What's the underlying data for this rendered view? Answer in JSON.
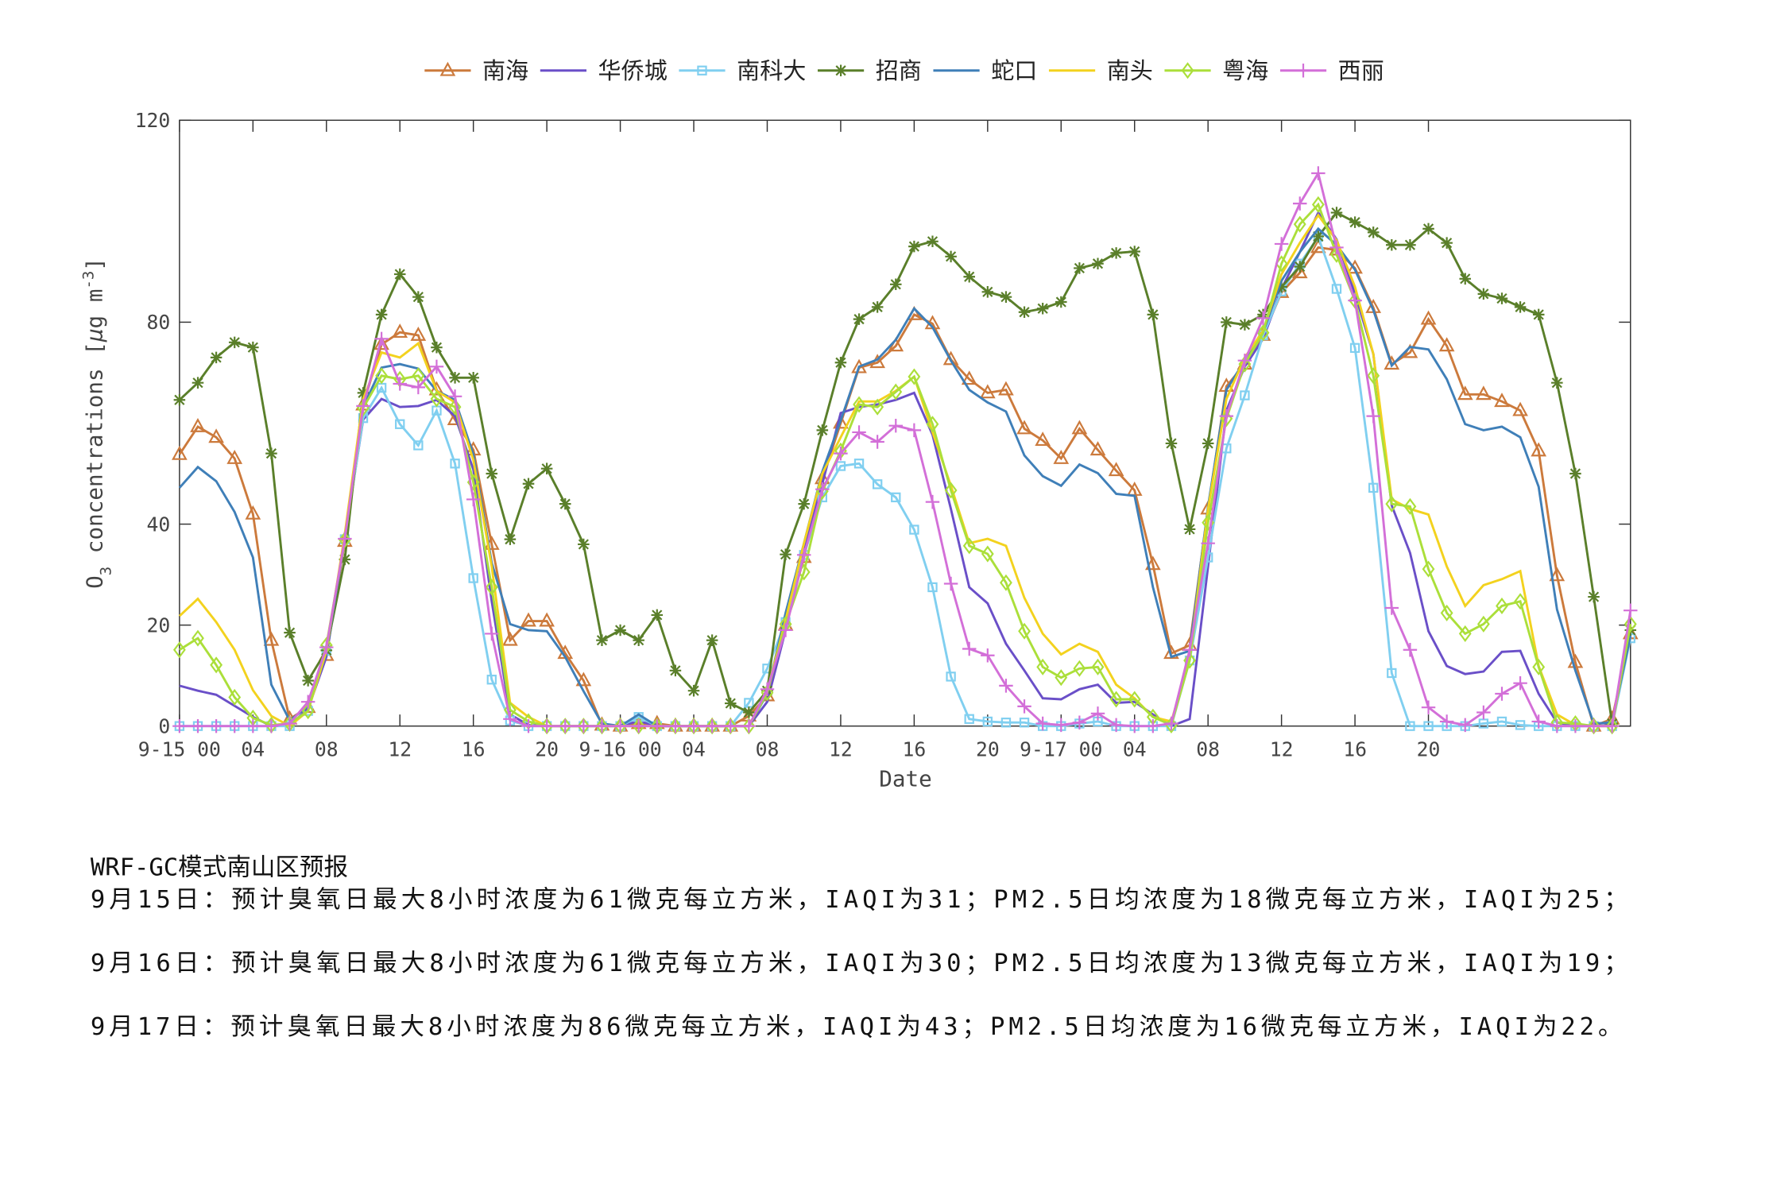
{
  "chart_data": {
    "type": "line",
    "x_label": "Date",
    "y_label": [
      "O",
      "3",
      " concentrations [",
      "μ",
      "g m",
      "-3",
      "]"
    ],
    "x": [
      0,
      1,
      2,
      3,
      4,
      5,
      6,
      7,
      8,
      9,
      10,
      11,
      12,
      13,
      14,
      15,
      16,
      17,
      18,
      19,
      20,
      21,
      22,
      23,
      24,
      25,
      26,
      27,
      28,
      29,
      30,
      31,
      32,
      33,
      34,
      35,
      36,
      37,
      38,
      39,
      40,
      41,
      42,
      43,
      44,
      45,
      46,
      47,
      48,
      49,
      50,
      51,
      52,
      53,
      54,
      55,
      56,
      57,
      58,
      59,
      60,
      61,
      62,
      63,
      64,
      65,
      66,
      67,
      68,
      69,
      70,
      71,
      72,
      73,
      74,
      75,
      76,
      77,
      78,
      79
    ],
    "xlim": [
      0,
      79
    ],
    "xticks": [
      {
        "value": 0,
        "label": "9-15 00"
      },
      {
        "value": 4,
        "label": "04"
      },
      {
        "value": 8,
        "label": "08"
      },
      {
        "value": 12,
        "label": "12"
      },
      {
        "value": 16,
        "label": "16"
      },
      {
        "value": 20,
        "label": "20"
      },
      {
        "value": 24,
        "label": "9-16 00"
      },
      {
        "value": 28,
        "label": "04"
      },
      {
        "value": 32,
        "label": "08"
      },
      {
        "value": 36,
        "label": "12"
      },
      {
        "value": 40,
        "label": "16"
      },
      {
        "value": 44,
        "label": "20"
      },
      {
        "value": 48,
        "label": "9-17 00"
      },
      {
        "value": 52,
        "label": "04"
      },
      {
        "value": 56,
        "label": "08"
      },
      {
        "value": 60,
        "label": "12"
      },
      {
        "value": 64,
        "label": "16"
      },
      {
        "value": 68,
        "label": "20"
      }
    ],
    "ylim": [
      0,
      120
    ],
    "yticks": [
      0,
      20,
      40,
      80,
      120
    ],
    "legend": "top",
    "series": [
      {
        "name": "南海",
        "color": "#cc7a3c",
        "marker": "triangle",
        "values": [
          53.8,
          59.3,
          57.2,
          53,
          42,
          17,
          1.4,
          3.7,
          14,
          36.6,
          63.6,
          75.6,
          78,
          77.4,
          66.6,
          60.7,
          54.7,
          36,
          17,
          20.8,
          20.8,
          14.4,
          9,
          0.2,
          0,
          0.5,
          0.5,
          0,
          0,
          0,
          0,
          2,
          6,
          20,
          33.4,
          49,
          60,
          71,
          72,
          75.3,
          81.5,
          79.7,
          72.6,
          68.7,
          66,
          66.6,
          58.9,
          56.6,
          53,
          58.9,
          54.7,
          50.6,
          46.7,
          32,
          14.4,
          16,
          43,
          67.3,
          71.7,
          77.4,
          85.9,
          89.8,
          94.8,
          94.3,
          90.7,
          82.9,
          71.7,
          74,
          80.6,
          75.3,
          65.7,
          65.7,
          64.3,
          62.5,
          54.5,
          29.8,
          12.6,
          0,
          1.4,
          18.3
        ]
      },
      {
        "name": "华侨城",
        "color": "#6a4fc8",
        "values": [
          8,
          7,
          6.2,
          4,
          1.8,
          0,
          0.2,
          3.4,
          13.7,
          37.3,
          60.7,
          64.8,
          63.2,
          63.4,
          64.6,
          61.4,
          50.8,
          24.7,
          2.3,
          0.2,
          0,
          0,
          0,
          0,
          0,
          1,
          0,
          0,
          0,
          0,
          0,
          0,
          4.8,
          19,
          35.5,
          48,
          62,
          63.2,
          63.7,
          64.6,
          66,
          57.7,
          43,
          27.5,
          24.3,
          16.3,
          11,
          5.5,
          5.3,
          7.3,
          8.2,
          4.6,
          4.8,
          2.3,
          0,
          1.4,
          31.6,
          62.5,
          71.2,
          76.7,
          86.6,
          93.9,
          101.7,
          96.4,
          85.6,
          73.7,
          43.7,
          34.3,
          18.8,
          11.9,
          10.3,
          10.8,
          14.7,
          14.9,
          6.4,
          0.7,
          0,
          0,
          0.2,
          18.3
        ]
      },
      {
        "name": "南科大",
        "color": "#80cff0",
        "marker": "square",
        "values": [
          0,
          0,
          0,
          0,
          0,
          0,
          0,
          3,
          14.9,
          37,
          61,
          67,
          59.8,
          55.6,
          62.5,
          52,
          29.3,
          9.2,
          1.1,
          0,
          0,
          0,
          0,
          0,
          0,
          1.8,
          0,
          0,
          0,
          0,
          0,
          4.6,
          11.4,
          20.6,
          33.9,
          45.3,
          51.5,
          52,
          47.9,
          45.3,
          38.9,
          27.5,
          9.8,
          1.4,
          0.9,
          0.7,
          0.7,
          0,
          0,
          0.5,
          0.9,
          0,
          0,
          0,
          0,
          13,
          33.4,
          55,
          65.5,
          77.4,
          86.1,
          91.6,
          96.9,
          86.6,
          74.9,
          47.2,
          10.5,
          0,
          0,
          0,
          0,
          0.5,
          0.9,
          0.2,
          0,
          0,
          0,
          0,
          0,
          17.4
        ]
      },
      {
        "name": "招商",
        "color": "#5a7f2a",
        "marker": "star",
        "values": [
          64.6,
          68,
          73,
          76,
          75,
          54,
          18.5,
          9,
          15,
          33,
          66,
          81.5,
          89.5,
          85,
          75,
          69,
          69,
          50,
          37,
          48,
          51,
          44,
          36,
          17,
          19,
          17,
          22,
          11,
          7,
          17,
          4.5,
          2.7,
          7,
          34,
          44,
          58.6,
          72,
          80.6,
          83,
          87.5,
          95,
          96,
          93,
          89,
          86,
          85,
          82,
          82.7,
          84,
          90.7,
          91.6,
          93.7,
          94,
          81.5,
          56,
          39,
          56,
          80,
          79.5,
          81.5,
          87,
          91,
          97,
          101.7,
          99.8,
          97.8,
          95.3,
          95.3,
          98.5,
          95.7,
          88.6,
          85.6,
          84.7,
          83,
          81.5,
          68,
          50,
          25.6,
          0.5,
          19
        ]
      },
      {
        "name": "蛇口",
        "color": "#3f7fb8",
        "values": [
          47.2,
          51.3,
          48.5,
          42.4,
          33.4,
          8.2,
          1.1,
          3.9,
          14.4,
          37.3,
          63.2,
          71,
          71.7,
          70.8,
          66.4,
          64.6,
          53.8,
          32.3,
          20.2,
          19,
          18.8,
          13.7,
          6.9,
          0.5,
          0,
          2.3,
          0,
          0,
          0,
          0,
          0,
          0,
          6.4,
          22.4,
          36.2,
          50.4,
          60.5,
          71.2,
          72.6,
          76.5,
          82.7,
          79,
          72.4,
          66.6,
          64.1,
          62.3,
          53.6,
          49.5,
          47.6,
          51.8,
          50.1,
          46,
          45.6,
          27.5,
          13.7,
          14.9,
          43.5,
          66.6,
          72.4,
          78,
          88.2,
          93.9,
          98.5,
          95.3,
          90.4,
          82.4,
          71.4,
          75.1,
          74.6,
          68.7,
          59.8,
          58.6,
          59.3,
          57.2,
          47.4,
          23.1,
          11,
          0.5,
          0.7,
          17.9
        ]
      },
      {
        "name": "南头",
        "color": "#f3d21e",
        "values": [
          21.8,
          25.2,
          20.6,
          15.1,
          7.1,
          2,
          0,
          3,
          14.9,
          38,
          64.8,
          74,
          73,
          75.8,
          66.4,
          64.1,
          52.7,
          31.6,
          4.6,
          1.8,
          0,
          0,
          0,
          0,
          0,
          0,
          0,
          0,
          0,
          0,
          0,
          0,
          6.9,
          21,
          36.2,
          50,
          57.2,
          64.3,
          64.3,
          66.4,
          69.2,
          58.2,
          47.6,
          36.2,
          37.1,
          35.7,
          25.4,
          18.3,
          14.2,
          16.3,
          14.7,
          8.2,
          5.5,
          1.8,
          0.9,
          13.3,
          43,
          64.8,
          73,
          78.3,
          89.5,
          95.7,
          101.2,
          96.2,
          87,
          73.7,
          44.9,
          43,
          41.9,
          31.6,
          23.8,
          27.9,
          29.1,
          30.7,
          11.9,
          2.3,
          0.2,
          0,
          0,
          20.2
        ]
      },
      {
        "name": "粤海",
        "color": "#abdf3a",
        "marker": "diamond",
        "values": [
          15.1,
          17.4,
          12.1,
          5.7,
          1.6,
          0.2,
          0.5,
          3,
          16,
          36.9,
          63,
          69.4,
          68.7,
          69.4,
          64.8,
          63.2,
          48.3,
          27.5,
          3.2,
          0.9,
          0,
          0,
          0,
          0,
          0,
          0,
          0,
          0,
          0,
          0,
          0,
          0,
          6.6,
          20.2,
          30.5,
          46.5,
          54.5,
          63.7,
          63.2,
          66.2,
          69.2,
          59.8,
          46.7,
          35.7,
          34.1,
          28.4,
          18.8,
          11.7,
          9.6,
          11.4,
          11.7,
          5.3,
          5.3,
          1.8,
          0.2,
          13,
          40.3,
          60.9,
          71.7,
          77.9,
          91.6,
          99.4,
          103.3,
          93.4,
          84.3,
          69.4,
          44,
          43.5,
          31.1,
          22.4,
          18.3,
          20.2,
          23.8,
          24.7,
          11.7,
          0.7,
          0.5,
          0,
          0,
          20.2
        ]
      },
      {
        "name": "西丽",
        "color": "#d36fd8",
        "marker": "plus",
        "values": [
          0,
          0,
          0,
          0,
          0,
          0,
          0.5,
          4.8,
          15.6,
          37.1,
          63.4,
          76.7,
          67.8,
          67.1,
          71.2,
          65.3,
          44.9,
          18.3,
          1.4,
          0,
          0,
          0,
          0,
          0,
          0,
          0,
          0,
          0,
          0,
          0,
          0,
          0,
          7.3,
          19,
          33.9,
          46.9,
          54,
          58.2,
          56.3,
          59.5,
          58.6,
          44.4,
          28.2,
          15.3,
          14,
          8,
          3.9,
          0.5,
          0.2,
          0.7,
          2.5,
          0.2,
          0,
          0,
          0.5,
          15.1,
          36.2,
          61.4,
          72.4,
          80.8,
          95.5,
          103.5,
          109.5,
          94.8,
          84.3,
          61.4,
          23.4,
          15.1,
          3.7,
          0.9,
          0.2,
          2.7,
          6.4,
          8.5,
          0.9,
          0,
          0,
          0,
          0,
          22.9
        ]
      }
    ]
  },
  "notes": {
    "title": "WRF-GC模式南山区预报",
    "lines": [
      "9月15日：预计臭氧日最大8小时浓度为61微克每立方米，IAQI为31；PM2.5日均浓度为18微克每立方米，IAQI为25；",
      "9月16日：预计臭氧日最大8小时浓度为61微克每立方米，IAQI为30；PM2.5日均浓度为13微克每立方米，IAQI为19；",
      "9月17日：预计臭氧日最大8小时浓度为86微克每立方米，IAQI为43；PM2.5日均浓度为16微克每立方米，IAQI为22。"
    ]
  }
}
